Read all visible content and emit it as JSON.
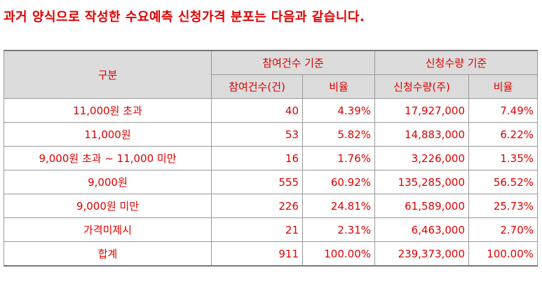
{
  "heading": "과거 양식으로 작성한 수요예측 신청가격 분포는 다음과 같습니다.",
  "table": {
    "header": {
      "category": "구분",
      "group_participants": "참여건수 기준",
      "group_quantity": "신청수량 기준",
      "participants_count": "참여건수(건)",
      "participants_ratio": "비율",
      "quantity_count": "신청수량(주)",
      "quantity_ratio": "비율"
    },
    "rows": [
      {
        "label": "11,000원 초과",
        "participants": "40",
        "participants_ratio": "4.39%",
        "quantity": "17,927,000",
        "quantity_ratio": "7.49%"
      },
      {
        "label": "11,000원",
        "participants": "53",
        "participants_ratio": "5.82%",
        "quantity": "14,883,000",
        "quantity_ratio": "6.22%"
      },
      {
        "label": "9,000원 초과 ~ 11,000 미만",
        "participants": "16",
        "participants_ratio": "1.76%",
        "quantity": "3,226,000",
        "quantity_ratio": "1.35%"
      },
      {
        "label": "9,000원",
        "participants": "555",
        "participants_ratio": "60.92%",
        "quantity": "135,285,000",
        "quantity_ratio": "56.52%"
      },
      {
        "label": "9,000원 미만",
        "participants": "226",
        "participants_ratio": "24.81%",
        "quantity": "61,589,000",
        "quantity_ratio": "25.73%"
      },
      {
        "label": "가격미제시",
        "participants": "21",
        "participants_ratio": "2.31%",
        "quantity": "6,463,000",
        "quantity_ratio": "2.70%"
      },
      {
        "label": "합계",
        "participants": "911",
        "participants_ratio": "100.00%",
        "quantity": "239,373,000",
        "quantity_ratio": "100.00%"
      }
    ]
  },
  "colors": {
    "text": "#e00000",
    "header_bg": "#dcdcdc",
    "border": "#9a9a9a"
  }
}
